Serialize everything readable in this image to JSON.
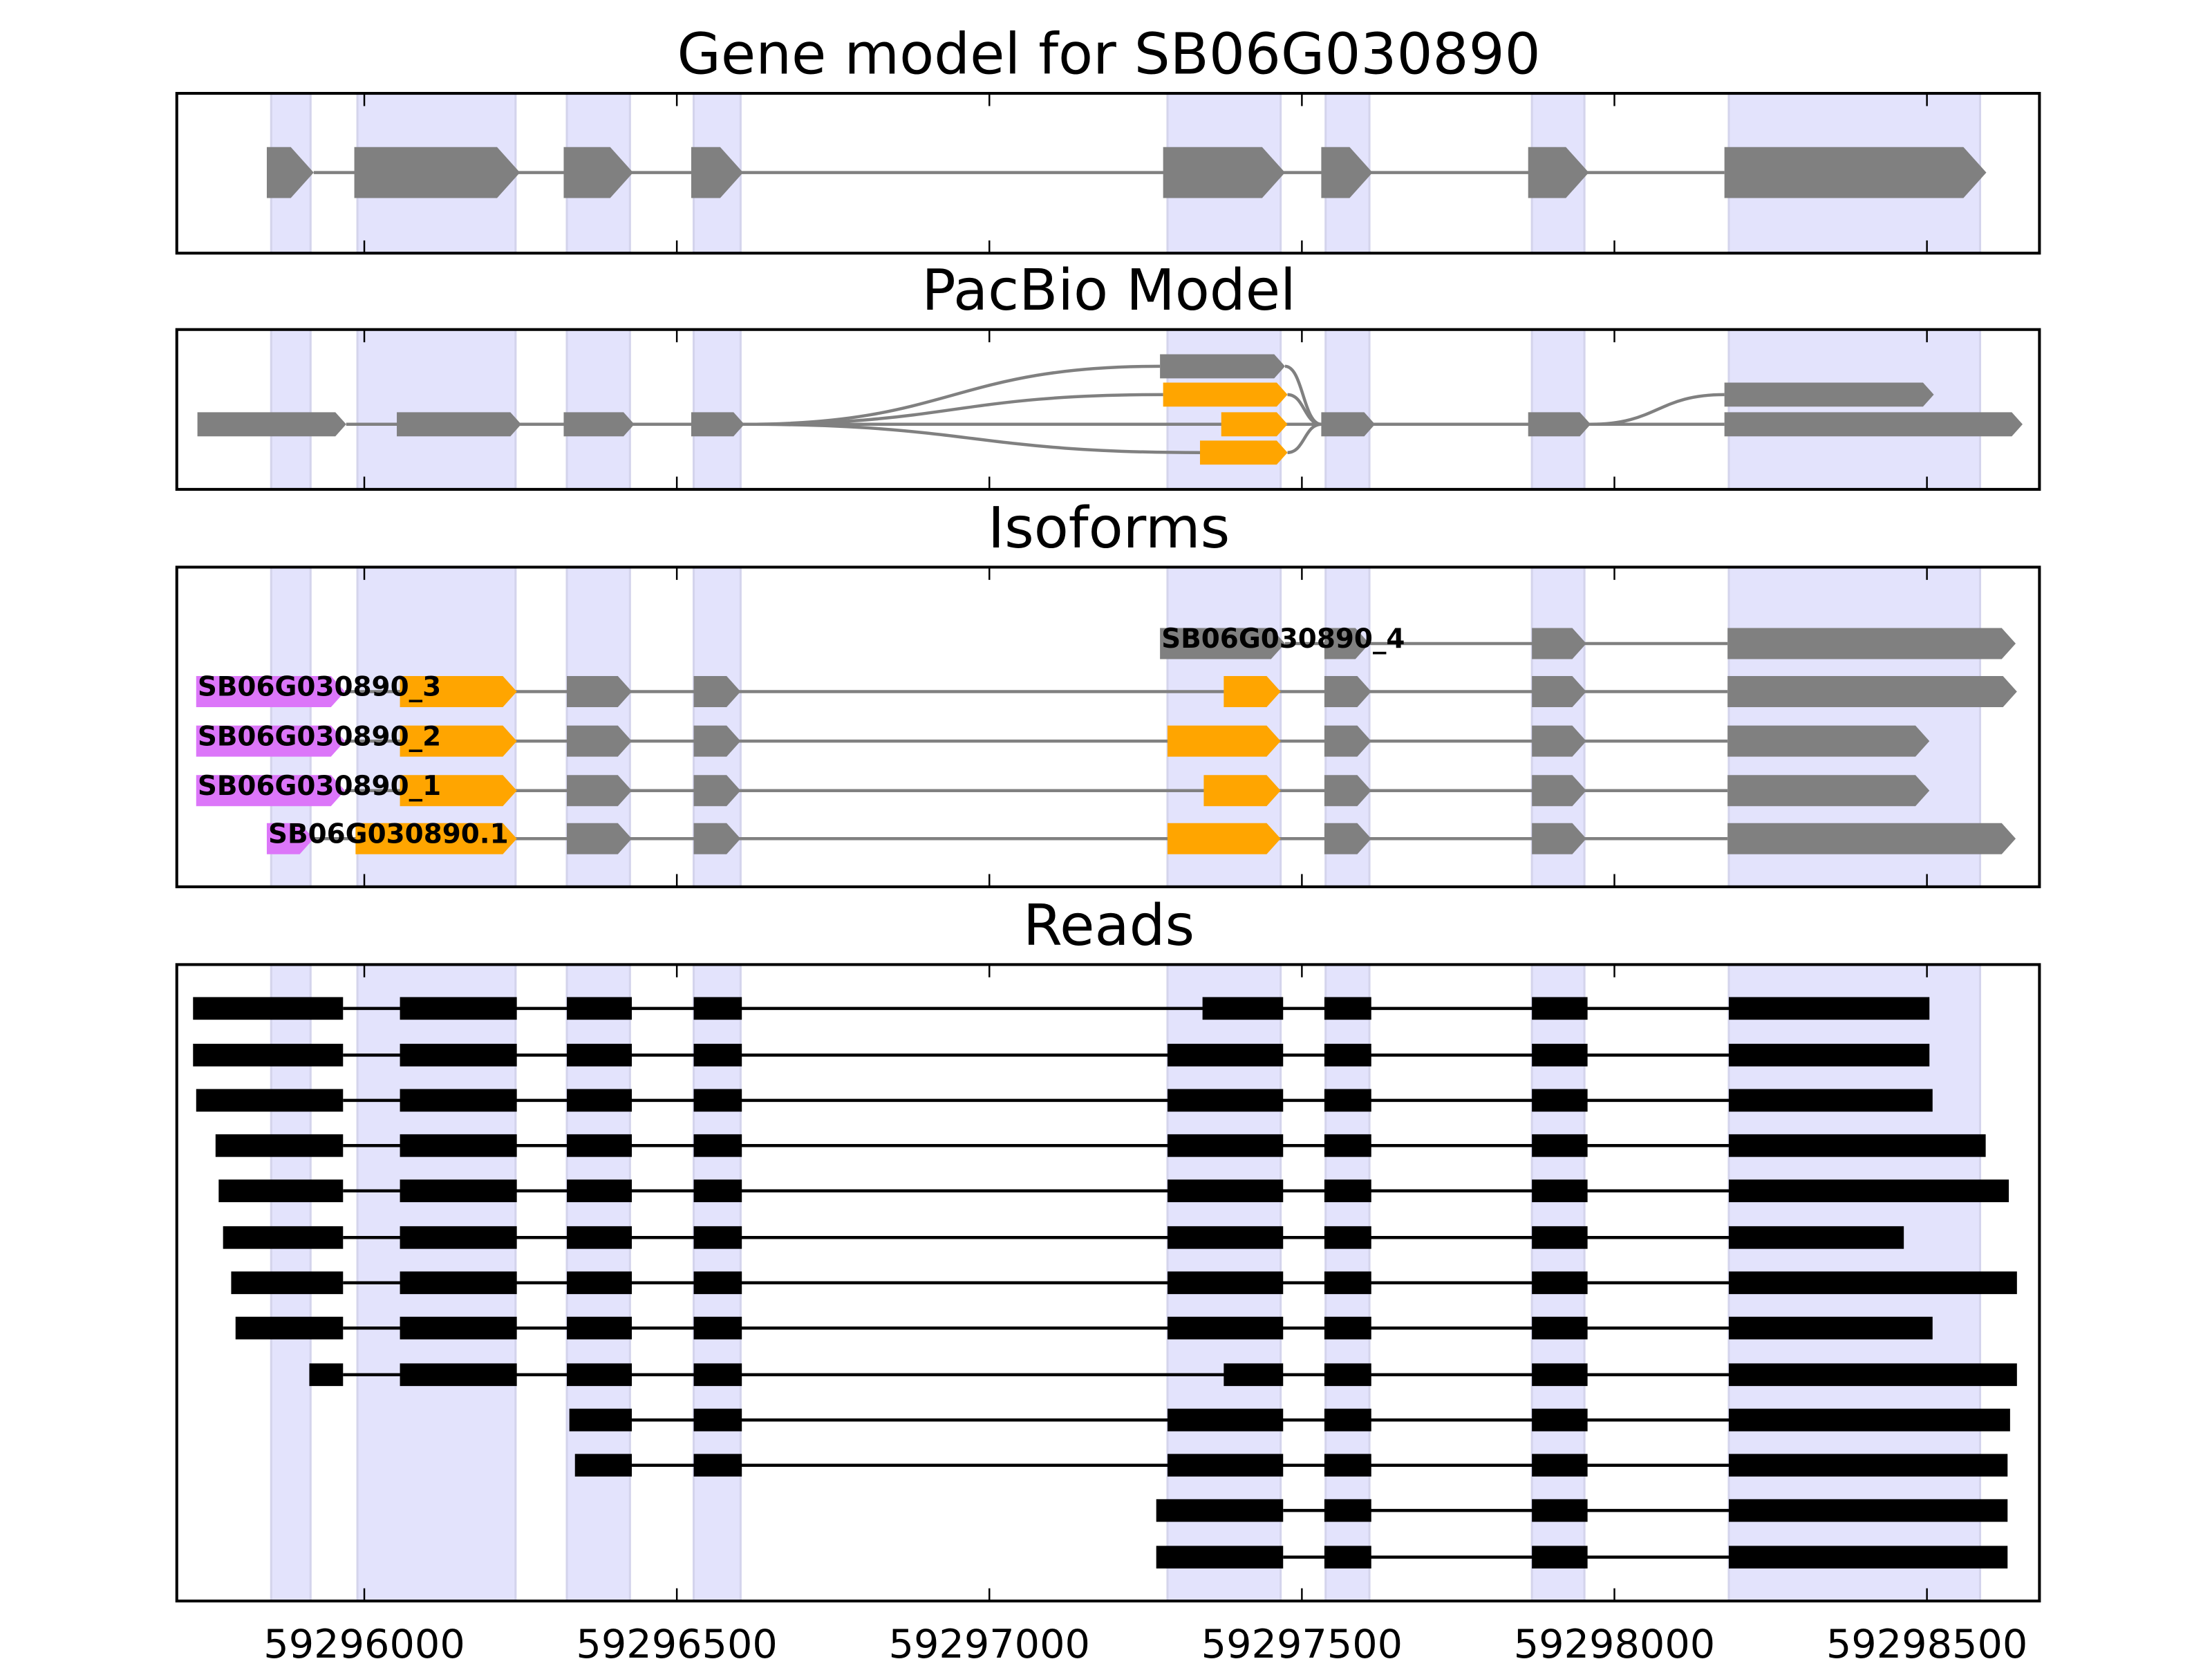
{
  "chart_data": {
    "type": "gene-track",
    "xlim": [
      59295700,
      59298680
    ],
    "xticks": [
      59296000,
      59296500,
      59297000,
      59297500,
      59298000,
      59298500
    ],
    "xtick_labels": [
      "59296000",
      "59296500",
      "59297000",
      "59297500",
      "59298000",
      "59298500"
    ],
    "colors": {
      "gray": "#808080",
      "orange": "#ffa500",
      "purple": "#dc76f9",
      "black": "#000000",
      "shade": "#e3e3fc"
    },
    "shaded_regions": [
      [
        59295851,
        59295914
      ],
      [
        59295989,
        59296242
      ],
      [
        59296324,
        59296425
      ],
      [
        59296527,
        59296602
      ],
      [
        59297285,
        59297466
      ],
      [
        59297538,
        59297608
      ],
      [
        59297868,
        59297952
      ],
      [
        59298183,
        59298585
      ]
    ],
    "panels": [
      {
        "title": "Gene model for SB06G030890",
        "kind": "gene",
        "rows": [
          {
            "blocks": [
              [
                59295844,
                59295919,
                "gray"
              ],
              [
                59295984,
                59296249,
                "gray"
              ],
              [
                59296319,
                59296430,
                "gray"
              ],
              [
                59296523,
                59296606,
                "gray"
              ],
              [
                59297278,
                59297473,
                "gray"
              ],
              [
                59297531,
                59297613,
                "gray"
              ],
              [
                59297862,
                59297959,
                "gray"
              ],
              [
                59298176,
                59298595,
                "gray"
              ]
            ]
          }
        ]
      },
      {
        "title": "PacBio Model",
        "kind": "pacbio",
        "rows": [
          {
            "blocks": [
              [
                59297273,
                59297473,
                "gray"
              ]
            ]
          },
          {
            "blocks": [
              [
                59297278,
                59297477,
                "orange"
              ],
              [
                59298176,
                59298511,
                "gray"
              ]
            ],
            "no_intron": true
          },
          {
            "blocks": [
              [
                59295733,
                59295971,
                "gray"
              ],
              [
                59296052,
                59296251,
                "gray"
              ],
              [
                59296319,
                59296432,
                "gray"
              ],
              [
                59296523,
                59296608,
                "gray"
              ],
              [
                59297371,
                59297477,
                "orange"
              ],
              [
                59297531,
                59297617,
                "gray"
              ],
              [
                59297862,
                59297962,
                "gray"
              ],
              [
                59298176,
                59298653,
                "gray"
              ]
            ]
          },
          {
            "blocks": [
              [
                59297337,
                59297477,
                "orange"
              ]
            ]
          }
        ],
        "connectors": [
          [
            59296608,
            2,
            59297273,
            0
          ],
          [
            59296608,
            2,
            59297278,
            1
          ],
          [
            59296608,
            2,
            59297337,
            3
          ],
          [
            59297473,
            0,
            59297531,
            2
          ],
          [
            59297477,
            1,
            59297531,
            2
          ],
          [
            59297477,
            3,
            59297531,
            2
          ],
          [
            59297962,
            2,
            59298176,
            1
          ]
        ]
      },
      {
        "title": "Isoforms",
        "kind": "isoforms",
        "rows": [
          {
            "label": "SB06G030890_4",
            "blocks": [
              [
                59297273,
                59297473,
                "gray"
              ],
              [
                59297536,
                59297608,
                "gray"
              ],
              [
                59297868,
                59297955,
                "gray"
              ],
              [
                59298181,
                59298642,
                "gray"
              ]
            ]
          },
          {
            "label": "SB06G030890_3",
            "blocks": [
              [
                59295731,
                59295969,
                "purple"
              ],
              [
                59296057,
                59296244,
                "orange"
              ],
              [
                59296324,
                59296428,
                "gray"
              ],
              [
                59296527,
                59296602,
                "gray"
              ],
              [
                59297375,
                59297466,
                "orange"
              ],
              [
                59297536,
                59297611,
                "gray"
              ],
              [
                59297868,
                59297955,
                "gray"
              ],
              [
                59298181,
                59298644,
                "gray"
              ]
            ]
          },
          {
            "label": "SB06G030890_2",
            "blocks": [
              [
                59295731,
                59295969,
                "purple"
              ],
              [
                59296057,
                59296244,
                "orange"
              ],
              [
                59296324,
                59296428,
                "gray"
              ],
              [
                59296527,
                59296602,
                "gray"
              ],
              [
                59297285,
                59297466,
                "orange"
              ],
              [
                59297536,
                59297611,
                "gray"
              ],
              [
                59297868,
                59297955,
                "gray"
              ],
              [
                59298181,
                59298504,
                "gray"
              ]
            ]
          },
          {
            "label": "SB06G030890_1",
            "blocks": [
              [
                59295731,
                59295969,
                "purple"
              ],
              [
                59296057,
                59296244,
                "orange"
              ],
              [
                59296324,
                59296428,
                "gray"
              ],
              [
                59296527,
                59296602,
                "gray"
              ],
              [
                59297343,
                59297466,
                "orange"
              ],
              [
                59297536,
                59297611,
                "gray"
              ],
              [
                59297868,
                59297955,
                "gray"
              ],
              [
                59298181,
                59298504,
                "gray"
              ]
            ]
          },
          {
            "label": "SB06G030890.1",
            "blocks": [
              [
                59295844,
                59295919,
                "purple"
              ],
              [
                59295986,
                59296244,
                "orange"
              ],
              [
                59296324,
                59296428,
                "gray"
              ],
              [
                59296527,
                59296602,
                "gray"
              ],
              [
                59297285,
                59297466,
                "orange"
              ],
              [
                59297536,
                59297611,
                "gray"
              ],
              [
                59297868,
                59297955,
                "gray"
              ],
              [
                59298181,
                59298642,
                "gray"
              ]
            ]
          }
        ]
      },
      {
        "title": "Reads",
        "kind": "reads",
        "rows": [
          {
            "blocks": [
              [
                59295726,
                59295966
              ],
              [
                59296057,
                59296244
              ],
              [
                59296324,
                59296428
              ],
              [
                59296527,
                59296604
              ],
              [
                59297341,
                59297470
              ],
              [
                59297536,
                59297611
              ],
              [
                59297868,
                59297957
              ],
              [
                59298183,
                59298504
              ]
            ]
          },
          {
            "blocks": [
              [
                59295726,
                59295966
              ],
              [
                59296057,
                59296244
              ],
              [
                59296324,
                59296428
              ],
              [
                59296527,
                59296604
              ],
              [
                59297285,
                59297470
              ],
              [
                59297536,
                59297611
              ],
              [
                59297868,
                59297957
              ],
              [
                59298183,
                59298504
              ]
            ]
          },
          {
            "blocks": [
              [
                59295731,
                59295966
              ],
              [
                59296057,
                59296244
              ],
              [
                59296324,
                59296428
              ],
              [
                59296527,
                59296604
              ],
              [
                59297285,
                59297470
              ],
              [
                59297536,
                59297611
              ],
              [
                59297868,
                59297957
              ],
              [
                59298183,
                59298509
              ]
            ]
          },
          {
            "blocks": [
              [
                59295762,
                59295966
              ],
              [
                59296057,
                59296244
              ],
              [
                59296324,
                59296428
              ],
              [
                59296527,
                59296604
              ],
              [
                59297285,
                59297470
              ],
              [
                59297536,
                59297611
              ],
              [
                59297868,
                59297957
              ],
              [
                59298183,
                59298594
              ]
            ]
          },
          {
            "blocks": [
              [
                59295767,
                59295966
              ],
              [
                59296057,
                59296244
              ],
              [
                59296324,
                59296428
              ],
              [
                59296527,
                59296604
              ],
              [
                59297285,
                59297470
              ],
              [
                59297536,
                59297611
              ],
              [
                59297868,
                59297957
              ],
              [
                59298183,
                59298631
              ]
            ]
          },
          {
            "blocks": [
              [
                59295774,
                59295966
              ],
              [
                59296057,
                59296244
              ],
              [
                59296324,
                59296428
              ],
              [
                59296527,
                59296604
              ],
              [
                59297285,
                59297470
              ],
              [
                59297536,
                59297611
              ],
              [
                59297868,
                59297957
              ],
              [
                59298183,
                59298463
              ]
            ]
          },
          {
            "blocks": [
              [
                59295787,
                59295966
              ],
              [
                59296057,
                59296244
              ],
              [
                59296324,
                59296428
              ],
              [
                59296527,
                59296604
              ],
              [
                59297285,
                59297470
              ],
              [
                59297536,
                59297611
              ],
              [
                59297868,
                59297957
              ],
              [
                59298183,
                59298644
              ]
            ]
          },
          {
            "blocks": [
              [
                59295794,
                59295966
              ],
              [
                59296057,
                59296244
              ],
              [
                59296324,
                59296428
              ],
              [
                59296527,
                59296604
              ],
              [
                59297285,
                59297470
              ],
              [
                59297536,
                59297611
              ],
              [
                59297868,
                59297957
              ],
              [
                59298183,
                59298509
              ]
            ]
          },
          {
            "blocks": [
              [
                59295912,
                59295966
              ],
              [
                59296057,
                59296244
              ],
              [
                59296324,
                59296428
              ],
              [
                59296527,
                59296604
              ],
              [
                59297375,
                59297470
              ],
              [
                59297536,
                59297611
              ],
              [
                59297868,
                59297957
              ],
              [
                59298183,
                59298644
              ]
            ]
          },
          {
            "blocks": [
              [
                59296328,
                59296428
              ],
              [
                59296527,
                59296604
              ],
              [
                59297285,
                59297470
              ],
              [
                59297536,
                59297611
              ],
              [
                59297868,
                59297957
              ],
              [
                59298183,
                59298633
              ]
            ]
          },
          {
            "blocks": [
              [
                59296337,
                59296428
              ],
              [
                59296527,
                59296604
              ],
              [
                59297285,
                59297470
              ],
              [
                59297536,
                59297611
              ],
              [
                59297868,
                59297957
              ],
              [
                59298183,
                59298629
              ]
            ]
          },
          {
            "blocks": [
              [
                59297267,
                59297470
              ],
              [
                59297536,
                59297611
              ],
              [
                59297868,
                59297957
              ],
              [
                59298183,
                59298629
              ]
            ]
          },
          {
            "blocks": [
              [
                59297267,
                59297470
              ],
              [
                59297536,
                59297611
              ],
              [
                59297868,
                59297957
              ],
              [
                59298183,
                59298629
              ]
            ]
          }
        ]
      }
    ]
  }
}
